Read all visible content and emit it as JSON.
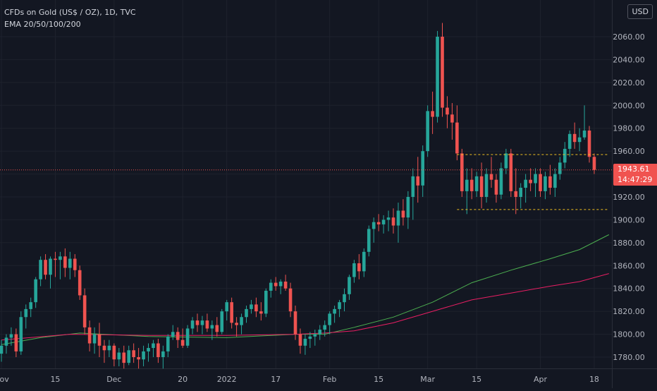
{
  "legend": {
    "symbol": "CFDs on Gold (US$ / OZ), 1D, TVC",
    "indicator": "EMA 20/50/100/200"
  },
  "currency_button": "USD",
  "last_price": {
    "value": "1943.61",
    "countdown": "14:47:29"
  },
  "colors": {
    "background": "#131722",
    "up": "#26a69a",
    "down": "#ef5350",
    "grid": "#1e222d",
    "axis_text": "#b2b5be",
    "ema_green": "#4caf50",
    "ema_red": "#e91e63",
    "level_line": "#f0c020",
    "price_line": "#f05350"
  },
  "chart_data": {
    "type": "candlestick",
    "title": "CFDs on Gold (US$ / OZ), 1D, TVC",
    "ylim": [
      1770,
      2075
    ],
    "y_ticks": [
      "1780.00",
      "1800.00",
      "1820.00",
      "1840.00",
      "1860.00",
      "1880.00",
      "1900.00",
      "1920.00",
      "1940.00",
      "1960.00",
      "1980.00",
      "2000.00",
      "2020.00",
      "2040.00",
      "2060.00"
    ],
    "x_ticks": [
      {
        "label": "Nov",
        "index": 0
      },
      {
        "label": "15",
        "index": 11
      },
      {
        "label": "Dec",
        "index": 23
      },
      {
        "label": "20",
        "index": 37
      },
      {
        "label": "2022",
        "index": 46
      },
      {
        "label": "17",
        "index": 56
      },
      {
        "label": "Feb",
        "index": 67
      },
      {
        "label": "15",
        "index": 77
      },
      {
        "label": "Mar",
        "index": 87
      },
      {
        "label": "15",
        "index": 97
      },
      {
        "label": "Apr",
        "index": 110
      },
      {
        "label": "18",
        "index": 121
      }
    ],
    "candles": [
      [
        1783,
        1795,
        1776,
        1790
      ],
      [
        1790,
        1800,
        1783,
        1797
      ],
      [
        1797,
        1806,
        1790,
        1800
      ],
      [
        1800,
        1805,
        1780,
        1785
      ],
      [
        1785,
        1820,
        1782,
        1815
      ],
      [
        1815,
        1826,
        1805,
        1822
      ],
      [
        1822,
        1832,
        1815,
        1828
      ],
      [
        1828,
        1850,
        1823,
        1848
      ],
      [
        1848,
        1868,
        1842,
        1865
      ],
      [
        1865,
        1870,
        1848,
        1852
      ],
      [
        1852,
        1868,
        1840,
        1866
      ],
      [
        1866,
        1872,
        1850,
        1865
      ],
      [
        1865,
        1872,
        1848,
        1868
      ],
      [
        1868,
        1875,
        1850,
        1858
      ],
      [
        1858,
        1872,
        1848,
        1866
      ],
      [
        1866,
        1870,
        1850,
        1856
      ],
      [
        1856,
        1860,
        1830,
        1834
      ],
      [
        1834,
        1840,
        1800,
        1806
      ],
      [
        1806,
        1812,
        1785,
        1792
      ],
      [
        1792,
        1806,
        1783,
        1800
      ],
      [
        1800,
        1810,
        1780,
        1790
      ],
      [
        1790,
        1795,
        1775,
        1786
      ],
      [
        1786,
        1795,
        1780,
        1790
      ],
      [
        1790,
        1792,
        1772,
        1778
      ],
      [
        1778,
        1788,
        1772,
        1784
      ],
      [
        1784,
        1790,
        1770,
        1775
      ],
      [
        1775,
        1790,
        1773,
        1786
      ],
      [
        1786,
        1792,
        1775,
        1780
      ],
      [
        1780,
        1788,
        1770,
        1778
      ],
      [
        1778,
        1790,
        1772,
        1785
      ],
      [
        1785,
        1792,
        1776,
        1788
      ],
      [
        1788,
        1795,
        1780,
        1792
      ],
      [
        1792,
        1796,
        1775,
        1780
      ],
      [
        1780,
        1790,
        1770,
        1785
      ],
      [
        1785,
        1800,
        1780,
        1798
      ],
      [
        1798,
        1808,
        1795,
        1802
      ],
      [
        1802,
        1806,
        1788,
        1795
      ],
      [
        1795,
        1805,
        1788,
        1790
      ],
      [
        1790,
        1808,
        1788,
        1805
      ],
      [
        1805,
        1815,
        1800,
        1812
      ],
      [
        1812,
        1818,
        1802,
        1808
      ],
      [
        1808,
        1816,
        1800,
        1812
      ],
      [
        1812,
        1818,
        1802,
        1805
      ],
      [
        1805,
        1812,
        1795,
        1808
      ],
      [
        1808,
        1815,
        1798,
        1802
      ],
      [
        1802,
        1822,
        1800,
        1820
      ],
      [
        1820,
        1830,
        1812,
        1828
      ],
      [
        1828,
        1832,
        1805,
        1810
      ],
      [
        1810,
        1815,
        1798,
        1808
      ],
      [
        1808,
        1818,
        1800,
        1815
      ],
      [
        1815,
        1825,
        1810,
        1822
      ],
      [
        1822,
        1830,
        1818,
        1826
      ],
      [
        1826,
        1832,
        1815,
        1820
      ],
      [
        1820,
        1828,
        1812,
        1818
      ],
      [
        1818,
        1840,
        1815,
        1838
      ],
      [
        1838,
        1848,
        1832,
        1845
      ],
      [
        1845,
        1850,
        1838,
        1842
      ],
      [
        1842,
        1848,
        1835,
        1846
      ],
      [
        1846,
        1852,
        1838,
        1840
      ],
      [
        1840,
        1845,
        1815,
        1820
      ],
      [
        1820,
        1825,
        1795,
        1800
      ],
      [
        1800,
        1805,
        1783,
        1790
      ],
      [
        1790,
        1800,
        1782,
        1796
      ],
      [
        1796,
        1802,
        1788,
        1798
      ],
      [
        1798,
        1804,
        1790,
        1800
      ],
      [
        1800,
        1808,
        1795,
        1804
      ],
      [
        1804,
        1812,
        1798,
        1808
      ],
      [
        1808,
        1820,
        1800,
        1818
      ],
      [
        1818,
        1825,
        1810,
        1822
      ],
      [
        1822,
        1830,
        1815,
        1828
      ],
      [
        1828,
        1840,
        1820,
        1835
      ],
      [
        1835,
        1852,
        1830,
        1850
      ],
      [
        1850,
        1865,
        1845,
        1862
      ],
      [
        1862,
        1870,
        1848,
        1855
      ],
      [
        1855,
        1875,
        1850,
        1872
      ],
      [
        1872,
        1895,
        1868,
        1892
      ],
      [
        1892,
        1902,
        1880,
        1898
      ],
      [
        1898,
        1905,
        1890,
        1896
      ],
      [
        1896,
        1904,
        1888,
        1900
      ],
      [
        1900,
        1908,
        1890,
        1902
      ],
      [
        1902,
        1910,
        1888,
        1895
      ],
      [
        1895,
        1915,
        1880,
        1908
      ],
      [
        1908,
        1918,
        1895,
        1902
      ],
      [
        1902,
        1925,
        1892,
        1920
      ],
      [
        1920,
        1945,
        1900,
        1938
      ],
      [
        1938,
        1955,
        1915,
        1930
      ],
      [
        1930,
        1965,
        1920,
        1960
      ],
      [
        1960,
        2000,
        1955,
        1995
      ],
      [
        1995,
        2012,
        1975,
        1990
      ],
      [
        1990,
        2065,
        1985,
        2060
      ],
      [
        2060,
        2072,
        1990,
        1998
      ],
      [
        1998,
        2008,
        1980,
        1992
      ],
      [
        1992,
        2002,
        1970,
        1985
      ],
      [
        1985,
        2000,
        1952,
        1958
      ],
      [
        1958,
        1962,
        1920,
        1925
      ],
      [
        1925,
        1945,
        1905,
        1935
      ],
      [
        1935,
        1945,
        1918,
        1925
      ],
      [
        1925,
        1942,
        1920,
        1938
      ],
      [
        1938,
        1950,
        1910,
        1920
      ],
      [
        1920,
        1945,
        1915,
        1940
      ],
      [
        1940,
        1955,
        1928,
        1935
      ],
      [
        1935,
        1940,
        1915,
        1922
      ],
      [
        1922,
        1950,
        1918,
        1945
      ],
      [
        1945,
        1962,
        1940,
        1958
      ],
      [
        1958,
        1962,
        1920,
        1925
      ],
      [
        1925,
        1945,
        1905,
        1920
      ],
      [
        1920,
        1932,
        1910,
        1928
      ],
      [
        1928,
        1940,
        1915,
        1935
      ],
      [
        1935,
        1945,
        1925,
        1932
      ],
      [
        1932,
        1945,
        1920,
        1940
      ],
      [
        1940,
        1945,
        1920,
        1925
      ],
      [
        1925,
        1942,
        1918,
        1938
      ],
      [
        1938,
        1948,
        1922,
        1928
      ],
      [
        1928,
        1945,
        1920,
        1940
      ],
      [
        1940,
        1955,
        1935,
        1950
      ],
      [
        1950,
        1968,
        1945,
        1962
      ],
      [
        1962,
        1978,
        1955,
        1975
      ],
      [
        1975,
        1985,
        1962,
        1968
      ],
      [
        1968,
        1980,
        1960,
        1972
      ],
      [
        1972,
        2000,
        1970,
        1978
      ],
      [
        1978,
        1982,
        1950,
        1955
      ],
      [
        1955,
        1958,
        1940,
        1943.61
      ]
    ],
    "ema_green": [
      [
        0,
        1791
      ],
      [
        8,
        1797
      ],
      [
        16,
        1801
      ],
      [
        30,
        1798
      ],
      [
        46,
        1797
      ],
      [
        60,
        1800
      ],
      [
        66,
        1800
      ],
      [
        72,
        1806
      ],
      [
        80,
        1815
      ],
      [
        88,
        1828
      ],
      [
        96,
        1845
      ],
      [
        104,
        1856
      ],
      [
        112,
        1866
      ],
      [
        118,
        1874
      ],
      [
        124,
        1887
      ]
    ],
    "ema_red": [
      [
        0,
        1795
      ],
      [
        14,
        1800
      ],
      [
        30,
        1799
      ],
      [
        46,
        1799
      ],
      [
        60,
        1800
      ],
      [
        66,
        1801
      ],
      [
        72,
        1803
      ],
      [
        80,
        1810
      ],
      [
        88,
        1820
      ],
      [
        96,
        1830
      ],
      [
        104,
        1836
      ],
      [
        112,
        1842
      ],
      [
        118,
        1846
      ],
      [
        124,
        1853
      ]
    ],
    "levels": [
      1957,
      1909
    ],
    "level_range_index": [
      93,
      124
    ],
    "last_price": 1943.61
  }
}
